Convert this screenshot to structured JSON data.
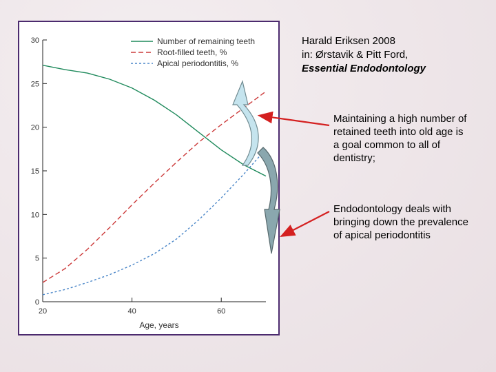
{
  "citation": {
    "line1": "Harald Eriksen 2008",
    "line2": "in: Ørstavik & Pitt Ford,",
    "line3": "Essential Endodontology"
  },
  "bullets": [
    "Maintaining a high number of retained teeth into old age is a goal common to all of dentistry;",
    "Endodontology deals with bringing down the prevalence of apical periodontitis"
  ],
  "colors": {
    "frame": "#4b2a6e",
    "teeth": "#1f8a5c",
    "root_filled": "#cc3a3a",
    "apical": "#4a86c8",
    "arrow_light": "#c5e4ee",
    "arrow_dark": "#8aa7ae",
    "pointer": "#d42020"
  },
  "chart_data": {
    "type": "line",
    "xlabel": "Age, years",
    "ylabel": "",
    "xlim": [
      20,
      70
    ],
    "ylim": [
      0,
      30
    ],
    "x_ticks": [
      20,
      40,
      60
    ],
    "y_ticks": [
      0,
      5,
      10,
      15,
      20,
      25,
      30
    ],
    "legend_position": "top-right",
    "series": [
      {
        "name": "Number of remaining teeth",
        "style": "solid",
        "points": [
          [
            20,
            27.1
          ],
          [
            25,
            26.6
          ],
          [
            30,
            26.2
          ],
          [
            35,
            25.5
          ],
          [
            40,
            24.5
          ],
          [
            45,
            23.1
          ],
          [
            50,
            21.4
          ],
          [
            55,
            19.4
          ],
          [
            60,
            17.4
          ],
          [
            65,
            15.7
          ],
          [
            70,
            14.4
          ]
        ]
      },
      {
        "name": "Root-filled teeth, %",
        "style": "dashed",
        "points": [
          [
            20,
            2.2
          ],
          [
            25,
            3.8
          ],
          [
            30,
            6.0
          ],
          [
            35,
            8.5
          ],
          [
            40,
            11.1
          ],
          [
            45,
            13.6
          ],
          [
            50,
            16.0
          ],
          [
            55,
            18.3
          ],
          [
            60,
            20.3
          ],
          [
            65,
            22.2
          ],
          [
            70,
            24.1
          ]
        ]
      },
      {
        "name": "Apical periodontitis, %",
        "style": "dotted",
        "points": [
          [
            20,
            0.8
          ],
          [
            25,
            1.4
          ],
          [
            30,
            2.2
          ],
          [
            35,
            3.1
          ],
          [
            40,
            4.2
          ],
          [
            45,
            5.5
          ],
          [
            50,
            7.2
          ],
          [
            55,
            9.4
          ],
          [
            60,
            11.9
          ],
          [
            65,
            14.6
          ],
          [
            70,
            17.5
          ]
        ]
      }
    ]
  }
}
